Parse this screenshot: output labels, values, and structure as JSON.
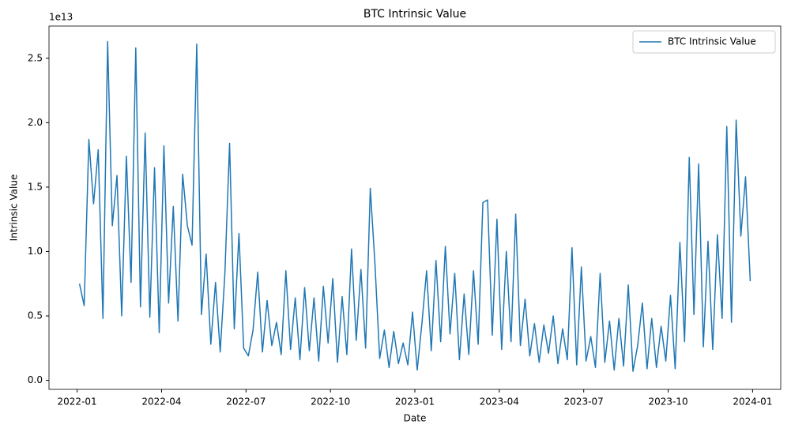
{
  "chart_data": {
    "type": "line",
    "title": "BTC Intrinsic Value",
    "x_label": "Date",
    "y_label": "Intrinsic Value",
    "y_offset_label": "1e13",
    "legend": "upper right",
    "grid": false,
    "x": [
      "2022-01",
      "2022-01",
      "2022-01",
      "2022-01",
      "2022-01",
      "2022-01",
      "2022-02",
      "2022-02",
      "2022-02",
      "2022-02",
      "2022-02",
      "2022-02",
      "2022-03",
      "2022-03",
      "2022-03",
      "2022-03",
      "2022-03",
      "2022-03",
      "2022-04",
      "2022-04",
      "2022-04",
      "2022-04",
      "2022-04",
      "2022-04",
      "2022-05",
      "2022-05",
      "2022-05",
      "2022-05",
      "2022-05",
      "2022-05",
      "2022-06",
      "2022-06",
      "2022-06",
      "2022-06",
      "2022-06",
      "2022-06",
      "2022-07",
      "2022-07",
      "2022-07",
      "2022-07",
      "2022-07",
      "2022-07",
      "2022-08",
      "2022-08",
      "2022-08",
      "2022-08",
      "2022-08",
      "2022-08",
      "2022-09",
      "2022-09",
      "2022-09",
      "2022-09",
      "2022-09",
      "2022-09",
      "2022-10",
      "2022-10",
      "2022-10",
      "2022-10",
      "2022-10",
      "2022-10",
      "2022-11",
      "2022-11",
      "2022-11",
      "2022-11",
      "2022-11",
      "2022-11",
      "2022-12",
      "2022-12",
      "2022-12",
      "2022-12",
      "2022-12",
      "2022-12",
      "2023-01",
      "2023-01",
      "2023-01",
      "2023-01",
      "2023-01",
      "2023-01",
      "2023-02",
      "2023-02",
      "2023-02",
      "2023-02",
      "2023-02",
      "2023-02",
      "2023-03",
      "2023-03",
      "2023-03",
      "2023-03",
      "2023-03",
      "2023-03",
      "2023-04",
      "2023-04",
      "2023-04",
      "2023-04",
      "2023-04",
      "2023-04",
      "2023-05",
      "2023-05",
      "2023-05",
      "2023-05",
      "2023-05",
      "2023-05",
      "2023-06",
      "2023-06",
      "2023-06",
      "2023-06",
      "2023-06",
      "2023-06",
      "2023-07",
      "2023-07",
      "2023-07",
      "2023-07",
      "2023-07",
      "2023-07",
      "2023-08",
      "2023-08",
      "2023-08",
      "2023-08",
      "2023-08",
      "2023-08",
      "2023-09",
      "2023-09",
      "2023-09",
      "2023-09",
      "2023-09",
      "2023-09",
      "2023-10",
      "2023-10",
      "2023-10",
      "2023-10",
      "2023-10",
      "2023-10",
      "2023-11",
      "2023-11",
      "2023-11",
      "2023-11",
      "2023-11",
      "2023-11",
      "2023-12",
      "2023-12",
      "2023-12",
      "2023-12",
      "2023-12",
      "2023-12"
    ],
    "series": [
      {
        "name": "BTC Intrinsic Value",
        "color": "#1f77b4",
        "values": [
          7500000000000.0,
          5800000000000.0,
          18700000000000.0,
          13700000000000.0,
          17900000000000.0,
          4800000000000.0,
          26300000000000.0,
          12000000000000.0,
          15900000000000.0,
          5000000000000.0,
          17400000000000.0,
          7600000000000.0,
          25800000000000.0,
          5700000000000.0,
          19200000000000.0,
          4900000000000.0,
          16500000000000.0,
          3700000000000.0,
          18200000000000.0,
          6000000000000.0,
          13500000000000.0,
          4600000000000.0,
          16000000000000.0,
          12000000000000.0,
          10500000000000.0,
          26100000000000.0,
          5100000000000.0,
          9800000000000.0,
          2800000000000.0,
          7600000000000.0,
          2200000000000.0,
          8300000000000.0,
          18400000000000.0,
          4000000000000.0,
          11400000000000.0,
          2500000000000.0,
          1900000000000.0,
          3900000000000.0,
          8400000000000.0,
          2200000000000.0,
          6200000000000.0,
          2700000000000.0,
          4500000000000.0,
          2000000000000.0,
          8500000000000.0,
          2400000000000.0,
          6400000000000.0,
          1600000000000.0,
          7200000000000.0,
          2300000000000.0,
          6400000000000.0,
          1500000000000.0,
          7300000000000.0,
          2900000000000.0,
          7900000000000.0,
          1400000000000.0,
          6500000000000.0,
          2000000000000.0,
          10200000000000.0,
          3100000000000.0,
          8600000000000.0,
          2500000000000.0,
          14900000000000.0,
          9000000000000.0,
          1700000000000.0,
          3900000000000.0,
          1000000000000.0,
          3800000000000.0,
          1300000000000.0,
          2900000000000.0,
          1200000000000.0,
          5300000000000.0,
          800000000000.0,
          4400000000000.0,
          8500000000000.0,
          2300000000000.0,
          9300000000000.0,
          3000000000000.0,
          10400000000000.0,
          3600000000000.0,
          8300000000000.0,
          1600000000000.0,
          6700000000000.0,
          2000000000000.0,
          8500000000000.0,
          2800000000000.0,
          13800000000000.0,
          14000000000000.0,
          3500000000000.0,
          12500000000000.0,
          2400000000000.0,
          10000000000000.0,
          3000000000000.0,
          12900000000000.0,
          2700000000000.0,
          6300000000000.0,
          1900000000000.0,
          4400000000000.0,
          1400000000000.0,
          4300000000000.0,
          2100000000000.0,
          5000000000000.0,
          1300000000000.0,
          4000000000000.0,
          1600000000000.0,
          10300000000000.0,
          1200000000000.0,
          8800000000000.0,
          1500000000000.0,
          3400000000000.0,
          1000000000000.0,
          8300000000000.0,
          1400000000000.0,
          4600000000000.0,
          800000000000.0,
          4800000000000.0,
          1100000000000.0,
          7400000000000.0,
          700000000000.0,
          2700000000000.0,
          6000000000000.0,
          900000000000.0,
          4800000000000.0,
          1000000000000.0,
          4200000000000.0,
          1500000000000.0,
          6600000000000.0,
          900000000000.0,
          10700000000000.0,
          3000000000000.0,
          17300000000000.0,
          5100000000000.0,
          16800000000000.0,
          2600000000000.0,
          10800000000000.0,
          2400000000000.0,
          11300000000000.0,
          4800000000000.0,
          19700000000000.0,
          4500000000000.0,
          20200000000000.0,
          11200000000000.0,
          15800000000000.0,
          7700000000000.0
        ]
      }
    ],
    "xlim": [
      "2021-12",
      "2024-02"
    ],
    "xticks": [
      "2022-01",
      "2022-04",
      "2022-07",
      "2022-10",
      "2023-01",
      "2023-04",
      "2023-07",
      "2023-10",
      "2024-01"
    ],
    "ylim": [
      -700000000000.0,
      27500000000000.0
    ],
    "yticks": [
      {
        "value": 0,
        "label": "0.0"
      },
      {
        "value": 5000000000000.0,
        "label": "0.5"
      },
      {
        "value": 10000000000000.0,
        "label": "1.0"
      },
      {
        "value": 15000000000000.0,
        "label": "1.5"
      },
      {
        "value": 20000000000000.0,
        "label": "2.0"
      },
      {
        "value": 25000000000000.0,
        "label": "2.5"
      }
    ]
  }
}
